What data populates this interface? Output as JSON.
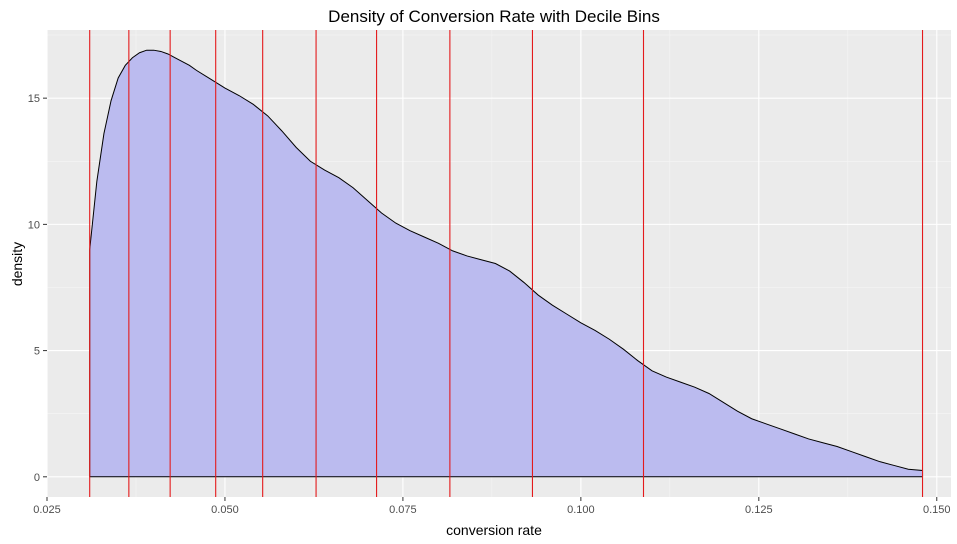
{
  "chart_data": {
    "type": "area",
    "title": "Density of Conversion Rate with Decile Bins",
    "xlabel": "conversion rate",
    "ylabel": "density",
    "xlim": [
      0.025,
      0.152
    ],
    "ylim": [
      -0.8,
      17.7
    ],
    "x_ticks": [
      0.025,
      0.05,
      0.075,
      0.1,
      0.125,
      0.15
    ],
    "x_tick_labels": [
      "0.025",
      "0.050",
      "0.075",
      "0.100",
      "0.125",
      "0.150"
    ],
    "y_ticks": [
      0,
      5,
      10,
      15
    ],
    "y_tick_labels": [
      "0",
      "5",
      "10",
      "15"
    ],
    "grid": true,
    "colors": {
      "panel_background": "#ebebeb",
      "grid_major": "#ffffff",
      "grid_minor": "#f5f5f5",
      "density_fill": "#bbbbef",
      "density_line": "#000000",
      "decile_line": "#e41a1c",
      "axis_text": "#4d4d4d"
    },
    "series": [
      {
        "kind": "density",
        "x": [
          0.031,
          0.032,
          0.033,
          0.034,
          0.035,
          0.036,
          0.037,
          0.038,
          0.039,
          0.04,
          0.041,
          0.042,
          0.043,
          0.044,
          0.045,
          0.046,
          0.048,
          0.05,
          0.052,
          0.054,
          0.056,
          0.058,
          0.06,
          0.062,
          0.064,
          0.066,
          0.068,
          0.07,
          0.072,
          0.074,
          0.076,
          0.078,
          0.08,
          0.082,
          0.084,
          0.086,
          0.088,
          0.09,
          0.092,
          0.094,
          0.096,
          0.098,
          0.1,
          0.102,
          0.104,
          0.106,
          0.108,
          0.11,
          0.112,
          0.114,
          0.116,
          0.118,
          0.12,
          0.122,
          0.124,
          0.126,
          0.128,
          0.13,
          0.132,
          0.134,
          0.136,
          0.138,
          0.14,
          0.142,
          0.144,
          0.146,
          0.148
        ],
        "y": [
          9.0,
          11.7,
          13.6,
          14.9,
          15.8,
          16.3,
          16.6,
          16.8,
          16.9,
          16.9,
          16.85,
          16.75,
          16.6,
          16.45,
          16.3,
          16.1,
          15.75,
          15.4,
          15.1,
          14.75,
          14.3,
          13.7,
          13.05,
          12.5,
          12.15,
          11.85,
          11.45,
          10.95,
          10.45,
          10.05,
          9.75,
          9.5,
          9.25,
          8.95,
          8.75,
          8.6,
          8.45,
          8.15,
          7.7,
          7.2,
          6.8,
          6.45,
          6.1,
          5.8,
          5.45,
          5.05,
          4.6,
          4.2,
          3.95,
          3.75,
          3.55,
          3.3,
          2.95,
          2.6,
          2.3,
          2.1,
          1.9,
          1.7,
          1.5,
          1.35,
          1.2,
          1.0,
          0.8,
          0.6,
          0.45,
          0.3,
          0.25
        ]
      }
    ],
    "decile_breaks": [
      0.031,
      0.0365,
      0.0423,
      0.0487,
      0.0553,
      0.0628,
      0.0713,
      0.0816,
      0.0932,
      0.1088,
      0.148
    ]
  }
}
